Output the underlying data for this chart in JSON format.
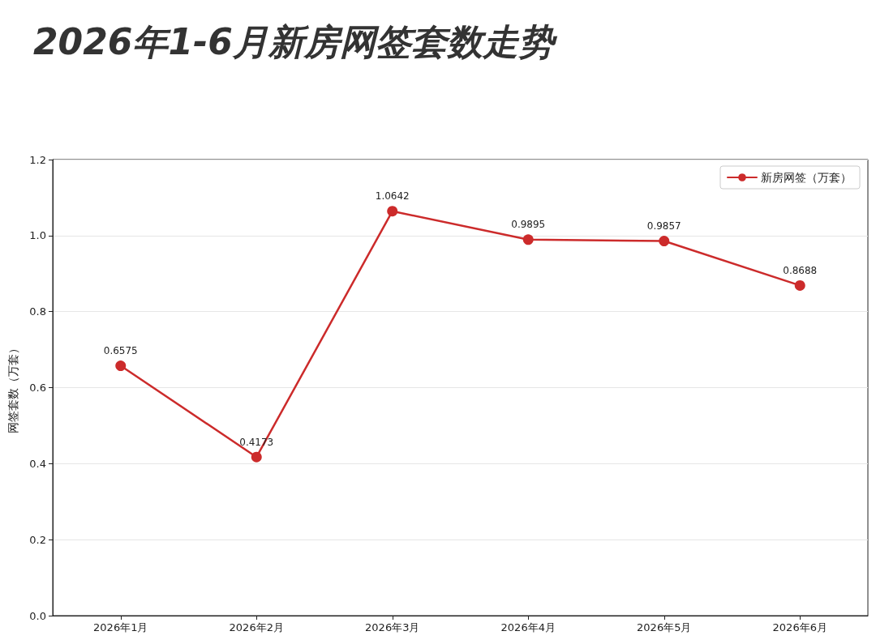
{
  "chart_data": {
    "type": "line",
    "title": "2026年1-6月新房网签套数走势",
    "ylabel": "网签套数（万套）",
    "categories": [
      "2026年1月",
      "2026年2月",
      "2026年3月",
      "2026年4月",
      "2026年5月",
      "2026年6月"
    ],
    "series": [
      {
        "name": "新房网签（万套）",
        "color": "#cc2b2b",
        "values": [
          0.6575,
          0.4173,
          1.0642,
          0.9895,
          0.9857,
          0.8688
        ]
      }
    ],
    "ylim": [
      0,
      1.2
    ],
    "yticks": [
      {
        "value": 0,
        "label": "0.0"
      },
      {
        "value": 0.2,
        "label": "0.2"
      },
      {
        "value": 0.4,
        "label": "0.4"
      },
      {
        "value": 0.6,
        "label": "0.6"
      },
      {
        "value": 0.8,
        "label": "0.8"
      },
      {
        "value": 1,
        "label": "1.0"
      },
      {
        "value": 1.2,
        "label": "1.2"
      }
    ],
    "grid": "y",
    "legend": "top right",
    "marker": "circle",
    "line_style": "solid",
    "data_labels": true
  }
}
